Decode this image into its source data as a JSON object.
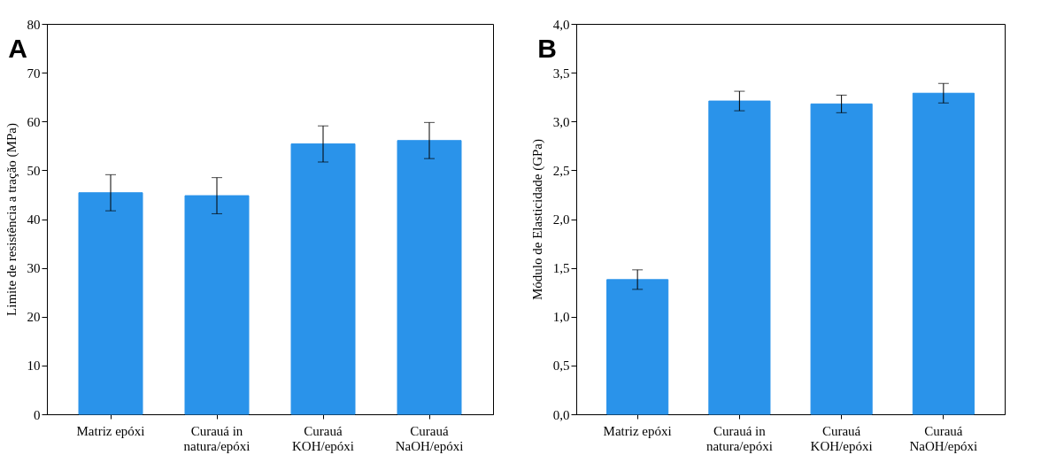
{
  "chart_data": [
    {
      "type": "bar",
      "ylabel": "Limite de resistência a tração (MPa)",
      "categories": [
        "Matriz epóxi",
        "Curauá in\nnatura/epóxi",
        "Curauá\nKOH/epóxi",
        "Curauá\nNaOH/epóxi"
      ],
      "values": [
        45.4,
        44.8,
        55.4,
        56.1
      ],
      "errors": [
        3.7,
        3.7,
        3.7,
        3.7
      ],
      "color": "#2a93ea",
      "ylim": [
        0,
        80
      ],
      "yticks": [
        0,
        10,
        20,
        30,
        40,
        50,
        60,
        70,
        80
      ],
      "annotations": [
        "A"
      ]
    },
    {
      "type": "bar",
      "ylabel": "Módulo de Elasticidade (GPa)",
      "categories": [
        "Matriz epóxi",
        "Curauá in\nnatura/epóxi",
        "Curauá\nKOH/epóxi",
        "Curauá\nNaOH/epóxi"
      ],
      "values": [
        1.38,
        3.21,
        3.18,
        3.29
      ],
      "errors": [
        0.1,
        0.1,
        0.09,
        0.1
      ],
      "color": "#2a93ea",
      "ylim": [
        0,
        4
      ],
      "yticks": [
        {
          "value": 0,
          "label": "0,0"
        },
        {
          "value": 0.5,
          "label": "0,5"
        },
        {
          "value": 1,
          "label": "1,0"
        },
        {
          "value": 1.5,
          "label": "1,5"
        },
        {
          "value": 2,
          "label": "2,0"
        },
        {
          "value": 2.5,
          "label": "2,5"
        },
        {
          "value": 3,
          "label": "3,0"
        },
        {
          "value": 3.5,
          "label": "3,5"
        },
        {
          "value": 4,
          "label": "4,0"
        }
      ],
      "annotations": [
        "B"
      ]
    }
  ]
}
